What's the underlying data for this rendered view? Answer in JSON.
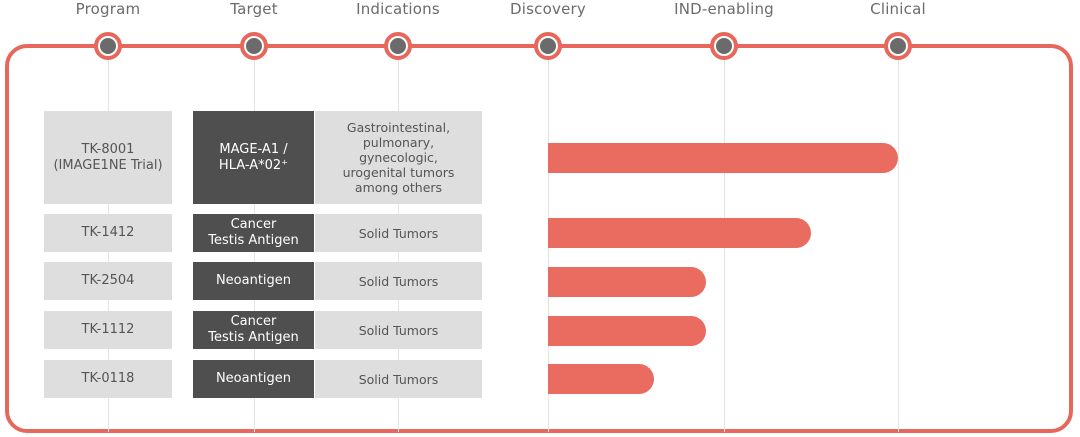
{
  "header": {
    "columns": [
      {
        "label": "Program"
      },
      {
        "label": "Target"
      },
      {
        "label": "Indications"
      },
      {
        "label": "Discovery"
      },
      {
        "label": "IND-enabling"
      },
      {
        "label": "Clinical"
      }
    ]
  },
  "colors": {
    "frame": "#e8675d",
    "bar": "#ea6b60",
    "program_cell": "#dedede",
    "target_cell": "#4f4f4f",
    "indication_cell": "#dedede",
    "marker_dot": "#6b6b6b"
  },
  "chart_data": {
    "type": "bar",
    "orientation": "horizontal",
    "stages": [
      "Discovery",
      "IND-enabling",
      "Clinical"
    ],
    "rows": [
      {
        "program": "TK-8001\n(IMAGE1NE Trial)",
        "target": "MAGE-A1 /\nHLA-A*02⁺",
        "indication": "Gastrointestinal,\npulmonary,\ngynecologic,\nurogenital  tumors\namong others",
        "stage_progress": 2.0
      },
      {
        "program": "TK-1412",
        "target": "Cancer\nTestis Antigen",
        "indication": "Solid Tumors",
        "stage_progress": 1.5
      },
      {
        "program": "TK-2504",
        "target": "Neoantigen",
        "indication": "Solid Tumors",
        "stage_progress": 0.9
      },
      {
        "program": "TK-1112",
        "target": "Cancer\nTestis Antigen",
        "indication": "Solid Tumors",
        "stage_progress": 0.9
      },
      {
        "program": "TK-0118",
        "target": "Neoantigen",
        "indication": "Solid Tumors",
        "stage_progress": 0.6
      }
    ]
  }
}
